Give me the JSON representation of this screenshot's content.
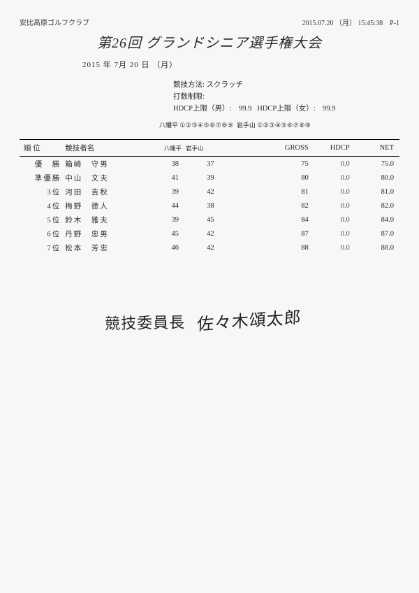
{
  "header": {
    "club": "安比高原ゴルフクラブ",
    "timestamp": "2015.07.20 （月） 15:45:38",
    "page": "P-1"
  },
  "title": "第26回 グランドシニア選手権大会",
  "date_line": "2015 年 7月 20 日 （月）",
  "meta": {
    "method_label": "競技方法:",
    "method_value": "スクラッチ",
    "stroke_limit_label": "打数制限:",
    "hdcp_m_label": "HDCP上限（男）:",
    "hdcp_m_value": "99.9",
    "hdcp_f_label": "HDCP上限（女）:",
    "hdcp_f_value": "99.9"
  },
  "holes": {
    "course1_label": "八幡平",
    "course1_nums": "①②③④⑤⑥⑦⑧⑨",
    "course2_label": "岩手山",
    "course2_nums": "①②③④⑤⑥⑦⑧⑨"
  },
  "columns": {
    "rank": "順 位",
    "name": "競技者名",
    "c1": "八幡平",
    "c2": "岩手山",
    "gross": "GROSS",
    "hdcp": "HDCP",
    "net": "NET"
  },
  "rows": [
    {
      "rank": "優　勝",
      "name": "箱崎　守男",
      "s1": "38",
      "s2": "37",
      "gross": "75",
      "hdcp": "0.0",
      "net": "75.0"
    },
    {
      "rank": "準優勝",
      "name": "中山　文夫",
      "s1": "41",
      "s2": "39",
      "gross": "80",
      "hdcp": "0.0",
      "net": "80.0"
    },
    {
      "rank": "3位",
      "name": "河田　吉秋",
      "s1": "39",
      "s2": "42",
      "gross": "81",
      "hdcp": "0.0",
      "net": "81.0"
    },
    {
      "rank": "4位",
      "name": "梅野　徳人",
      "s1": "44",
      "s2": "38",
      "gross": "82",
      "hdcp": "0.0",
      "net": "82.0"
    },
    {
      "rank": "5位",
      "name": "鈴木　雅夫",
      "s1": "39",
      "s2": "45",
      "gross": "84",
      "hdcp": "0.0",
      "net": "84.0"
    },
    {
      "rank": "6位",
      "name": "丹野　忠男",
      "s1": "45",
      "s2": "42",
      "gross": "87",
      "hdcp": "0.0",
      "net": "87.0"
    },
    {
      "rank": "7位",
      "name": "松本　芳忠",
      "s1": "46",
      "s2": "42",
      "gross": "88",
      "hdcp": "0.0",
      "net": "88.0"
    }
  ],
  "signature": {
    "label": "競技委員長",
    "name": "佐々木頌太郎"
  },
  "colors": {
    "bg": "#f7f7f5",
    "text": "#2a2a2a",
    "rule": "#000000"
  }
}
